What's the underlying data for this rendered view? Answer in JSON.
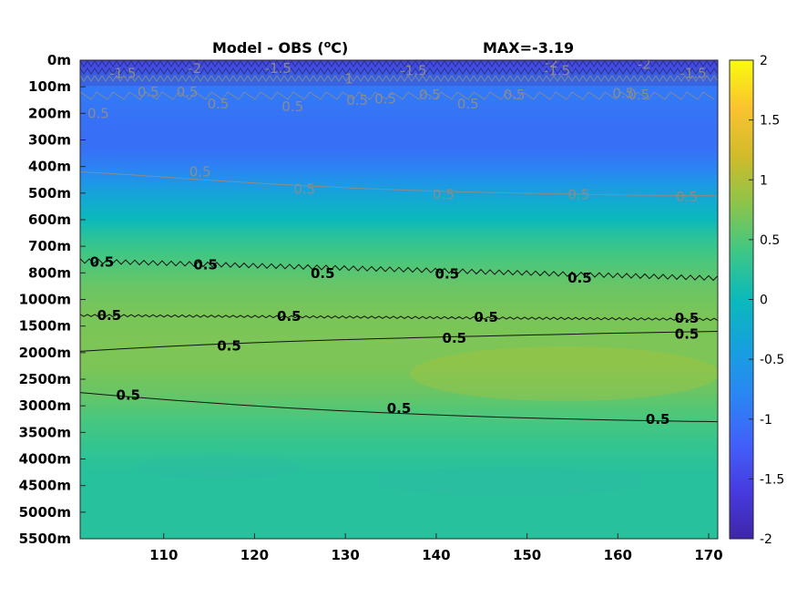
{
  "chart_data": {
    "type": "heatmap",
    "title_left": "Model - OBS (",
    "title_unit_sup": "o",
    "title_unit_rest": "C)",
    "title_right": "MAX=-3.19",
    "x_ticks": [
      110,
      120,
      130,
      140,
      150,
      160,
      170
    ],
    "xlim": [
      100.8,
      171
    ],
    "y_ticks": [
      "0m",
      "100m",
      "200m",
      "300m",
      "400m",
      "500m",
      "600m",
      "700m",
      "800m",
      "1000m",
      "1500m",
      "2000m",
      "2500m",
      "3000m",
      "3500m",
      "4000m",
      "4500m",
      "5000m",
      "5500m"
    ],
    "colorbar_ticks": [
      "2",
      "1.5",
      "1",
      "0.5",
      "0",
      "-0.5",
      "-1",
      "-1.5",
      "-2"
    ],
    "clim": [
      -2,
      2
    ],
    "colormap": "parula",
    "depth_profile": [
      [
        0,
        -1.6
      ],
      [
        0.3,
        -1.4
      ],
      [
        0.7,
        -0.85
      ],
      [
        1.0,
        -0.95
      ],
      [
        1.5,
        -0.95
      ],
      [
        2.5,
        -1.05
      ],
      [
        3.3,
        -1.05
      ],
      [
        4.0,
        -0.85
      ],
      [
        4.6,
        -0.55
      ],
      [
        5.3,
        -0.25
      ],
      [
        6.0,
        0.0
      ],
      [
        6.8,
        0.3
      ],
      [
        7.5,
        0.45
      ],
      [
        8.5,
        0.62
      ],
      [
        9.5,
        0.7
      ],
      [
        10.5,
        0.72
      ],
      [
        11.5,
        0.72
      ],
      [
        12.5,
        0.62
      ],
      [
        13.5,
        0.45
      ],
      [
        14.5,
        0.32
      ],
      [
        15.5,
        0.22
      ],
      [
        16.5,
        0.22
      ],
      [
        18,
        0.22
      ]
    ],
    "contour_level_label": "0.5",
    "contour_labels_black": [
      {
        "lon": 103.2,
        "depth": 7.6
      },
      {
        "lon": 114.6,
        "depth": 7.7
      },
      {
        "lon": 127.5,
        "depth": 8.03
      },
      {
        "lon": 141.2,
        "depth": 8.04
      },
      {
        "lon": 155.8,
        "depth": 8.2
      },
      {
        "lon": 104.0,
        "depth": 9.6
      },
      {
        "lon": 123.8,
        "depth": 9.63
      },
      {
        "lon": 145.5,
        "depth": 9.66
      },
      {
        "lon": 167.6,
        "depth": 9.7
      },
      {
        "lon": 117.2,
        "depth": 10.74
      },
      {
        "lon": 142.0,
        "depth": 10.45
      },
      {
        "lon": 167.6,
        "depth": 10.3
      },
      {
        "lon": 106.1,
        "depth": 12.6
      },
      {
        "lon": 135.9,
        "depth": 13.1
      },
      {
        "lon": 164.4,
        "depth": 13.5
      }
    ],
    "contour_labels_gray": [
      {
        "lon": 114.0,
        "depth": 4.2
      },
      {
        "lon": 125.5,
        "depth": 4.85
      },
      {
        "lon": 140.8,
        "depth": 5.05
      },
      {
        "lon": 155.7,
        "depth": 5.05
      },
      {
        "lon": 167.6,
        "depth": 5.15
      },
      {
        "lon": 112.6,
        "depth": 1.2
      },
      {
        "lon": 124.2,
        "depth": 1.75
      },
      {
        "lon": 134.4,
        "depth": 1.45
      },
      {
        "lon": 148.6,
        "depth": 1.3
      },
      {
        "lon": 162.3,
        "depth": 1.3
      }
    ],
    "contour_label_gray_surface": [
      {
        "text": "-1.5",
        "lon": 105.5,
        "depth": 0.5
      },
      {
        "text": "-2",
        "lon": 113.4,
        "depth": 0.3
      },
      {
        "text": "-1.5",
        "lon": 122.6,
        "depth": 0.3
      },
      {
        "text": "1",
        "lon": 130.4,
        "depth": 0.7
      },
      {
        "text": "-1.5",
        "lon": 137.5,
        "depth": 0.4
      },
      {
        "text": "-2",
        "lon": 152.7,
        "depth": 0.1
      },
      {
        "text": "-1.5",
        "lon": 153.3,
        "depth": 0.4
      },
      {
        "text": "-2",
        "lon": 162.9,
        "depth": 0.15
      },
      {
        "text": "-1.5",
        "lon": 168.3,
        "depth": 0.5
      },
      {
        "text": "0.5",
        "lon": 102.8,
        "depth": 2.0
      },
      {
        "text": "0.5",
        "lon": 108.3,
        "depth": 1.2
      },
      {
        "text": "0.5",
        "lon": 116.0,
        "depth": 1.65
      },
      {
        "text": "0.5",
        "lon": 131.3,
        "depth": 1.5
      },
      {
        "text": "0.5",
        "lon": 139.3,
        "depth": 1.3
      },
      {
        "text": "0.5",
        "lon": 143.5,
        "depth": 1.65
      },
      {
        "text": "0.5",
        "lon": 160.6,
        "depth": 1.25
      }
    ]
  }
}
